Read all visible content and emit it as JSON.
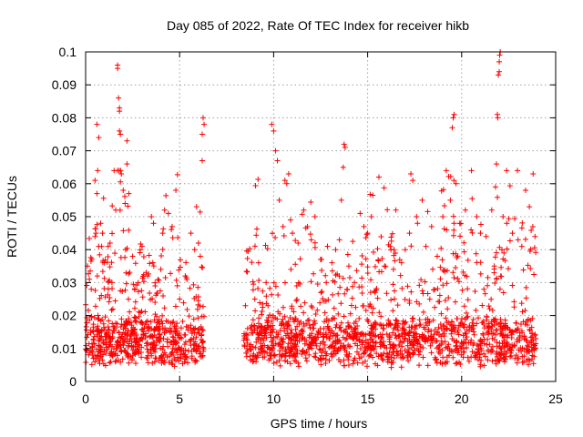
{
  "chart_data": {
    "type": "scatter",
    "title": "Day 085 of 2022, Rate Of TEC Index for receiver hikb",
    "xlabel": "GPS time / hours",
    "ylabel": "ROTI / TECUs",
    "xlim": [
      0,
      25
    ],
    "ylim": [
      0,
      0.1
    ],
    "xticks": [
      "0",
      "5",
      "10",
      "15",
      "20",
      "25"
    ],
    "xtick_values": [
      0,
      5,
      10,
      15,
      20,
      25
    ],
    "yticks": [
      "0",
      "0.01",
      "0.02",
      "0.03",
      "0.04",
      "0.05",
      "0.06",
      "0.07",
      "0.08",
      "0.09",
      "0.1"
    ],
    "ytick_values": [
      0,
      0.01,
      0.02,
      0.03,
      0.04,
      0.05,
      0.06,
      0.07,
      0.08,
      0.09,
      0.1
    ],
    "grid": true,
    "marker": "plus",
    "color": "#ff0000",
    "data_gap_hours": [
      6.3,
      8.4
    ],
    "series": [
      {
        "points": [
          [
            0.1,
            0.035
          ],
          [
            0.2,
            0.031
          ],
          [
            0.3,
            0.028
          ],
          [
            0.5,
            0.061
          ],
          [
            0.6,
            0.057
          ],
          [
            0.6,
            0.078
          ],
          [
            0.7,
            0.074
          ],
          [
            0.8,
            0.048
          ],
          [
            0.9,
            0.045
          ],
          [
            1.0,
            0.036
          ],
          [
            1.2,
            0.041
          ],
          [
            1.3,
            0.042
          ],
          [
            1.4,
            0.03
          ],
          [
            1.6,
            0.052
          ],
          [
            1.7,
            0.096
          ],
          [
            1.7,
            0.095
          ],
          [
            1.75,
            0.086
          ],
          [
            1.8,
            0.083
          ],
          [
            1.8,
            0.082
          ],
          [
            1.8,
            0.076
          ],
          [
            1.85,
            0.075
          ],
          [
            1.9,
            0.063
          ],
          [
            2.0,
            0.058
          ],
          [
            2.1,
            0.054
          ],
          [
            2.2,
            0.073
          ],
          [
            2.2,
            0.066
          ],
          [
            2.3,
            0.057
          ],
          [
            2.5,
            0.038
          ],
          [
            2.8,
            0.03
          ],
          [
            3.0,
            0.041
          ],
          [
            3.3,
            0.032
          ],
          [
            3.5,
            0.05
          ],
          [
            3.7,
            0.029
          ],
          [
            4.0,
            0.034
          ],
          [
            4.1,
            0.045
          ],
          [
            4.2,
            0.052
          ],
          [
            4.4,
            0.051
          ],
          [
            4.6,
            0.047
          ],
          [
            4.8,
            0.058
          ],
          [
            5.0,
            0.025
          ],
          [
            5.3,
            0.032
          ],
          [
            5.6,
            0.045
          ],
          [
            5.8,
            0.04
          ],
          [
            5.9,
            0.053
          ],
          [
            6.0,
            0.042
          ],
          [
            6.1,
            0.038
          ],
          [
            6.2,
            0.067
          ],
          [
            6.2,
            0.075
          ],
          [
            6.25,
            0.08
          ],
          [
            6.3,
            0.078
          ],
          [
            9.0,
            0.025
          ],
          [
            9.2,
            0.036
          ],
          [
            9.6,
            0.03
          ],
          [
            9.7,
            0.023
          ],
          [
            9.9,
            0.078
          ],
          [
            10.0,
            0.076
          ],
          [
            10.1,
            0.07
          ],
          [
            10.2,
            0.067
          ],
          [
            10.3,
            0.055
          ],
          [
            10.5,
            0.047
          ],
          [
            10.6,
            0.061
          ],
          [
            10.7,
            0.06
          ],
          [
            10.8,
            0.063
          ],
          [
            10.9,
            0.049
          ],
          [
            11.0,
            0.045
          ],
          [
            11.3,
            0.042
          ],
          [
            11.6,
            0.052
          ],
          [
            11.8,
            0.047
          ],
          [
            12.0,
            0.043
          ],
          [
            12.2,
            0.05
          ],
          [
            12.5,
            0.037
          ],
          [
            12.8,
            0.03
          ],
          [
            13.1,
            0.036
          ],
          [
            13.3,
            0.04
          ],
          [
            13.5,
            0.043
          ],
          [
            13.6,
            0.055
          ],
          [
            13.7,
            0.065
          ],
          [
            13.75,
            0.072
          ],
          [
            13.8,
            0.071
          ],
          [
            14.0,
            0.035
          ],
          [
            14.3,
            0.03
          ],
          [
            14.6,
            0.051
          ],
          [
            14.8,
            0.047
          ],
          [
            15.0,
            0.045
          ],
          [
            15.2,
            0.05
          ],
          [
            15.4,
            0.027
          ],
          [
            15.6,
            0.062
          ],
          [
            15.9,
            0.035
          ],
          [
            16.2,
            0.041
          ],
          [
            16.5,
            0.052
          ],
          [
            16.8,
            0.036
          ],
          [
            17.0,
            0.04
          ],
          [
            17.3,
            0.063
          ],
          [
            17.4,
            0.061
          ],
          [
            17.6,
            0.05
          ],
          [
            17.9,
            0.055
          ],
          [
            18.1,
            0.041
          ],
          [
            18.4,
            0.047
          ],
          [
            18.7,
            0.038
          ],
          [
            19.0,
            0.05
          ],
          [
            19.2,
            0.046
          ],
          [
            19.4,
            0.055
          ],
          [
            19.5,
            0.077
          ],
          [
            19.55,
            0.08
          ],
          [
            19.6,
            0.081
          ],
          [
            19.7,
            0.06
          ],
          [
            19.9,
            0.048
          ],
          [
            20.2,
            0.052
          ],
          [
            20.5,
            0.046
          ],
          [
            20.8,
            0.05
          ],
          [
            21.0,
            0.045
          ],
          [
            21.3,
            0.044
          ],
          [
            21.6,
            0.052
          ],
          [
            21.8,
            0.059
          ],
          [
            21.85,
            0.066
          ],
          [
            21.9,
            0.081
          ],
          [
            21.92,
            0.08
          ],
          [
            21.95,
            0.093
          ],
          [
            22.0,
            0.094
          ],
          [
            22.0,
            0.097
          ],
          [
            22.02,
            0.099
          ],
          [
            22.05,
            0.1
          ],
          [
            22.2,
            0.05
          ],
          [
            22.4,
            0.048
          ],
          [
            22.7,
            0.045
          ],
          [
            23.0,
            0.043
          ],
          [
            23.2,
            0.041
          ],
          [
            23.4,
            0.058
          ],
          [
            23.6,
            0.053
          ],
          [
            23.8,
            0.063
          ],
          [
            23.9,
            0.044
          ]
        ]
      }
    ]
  }
}
